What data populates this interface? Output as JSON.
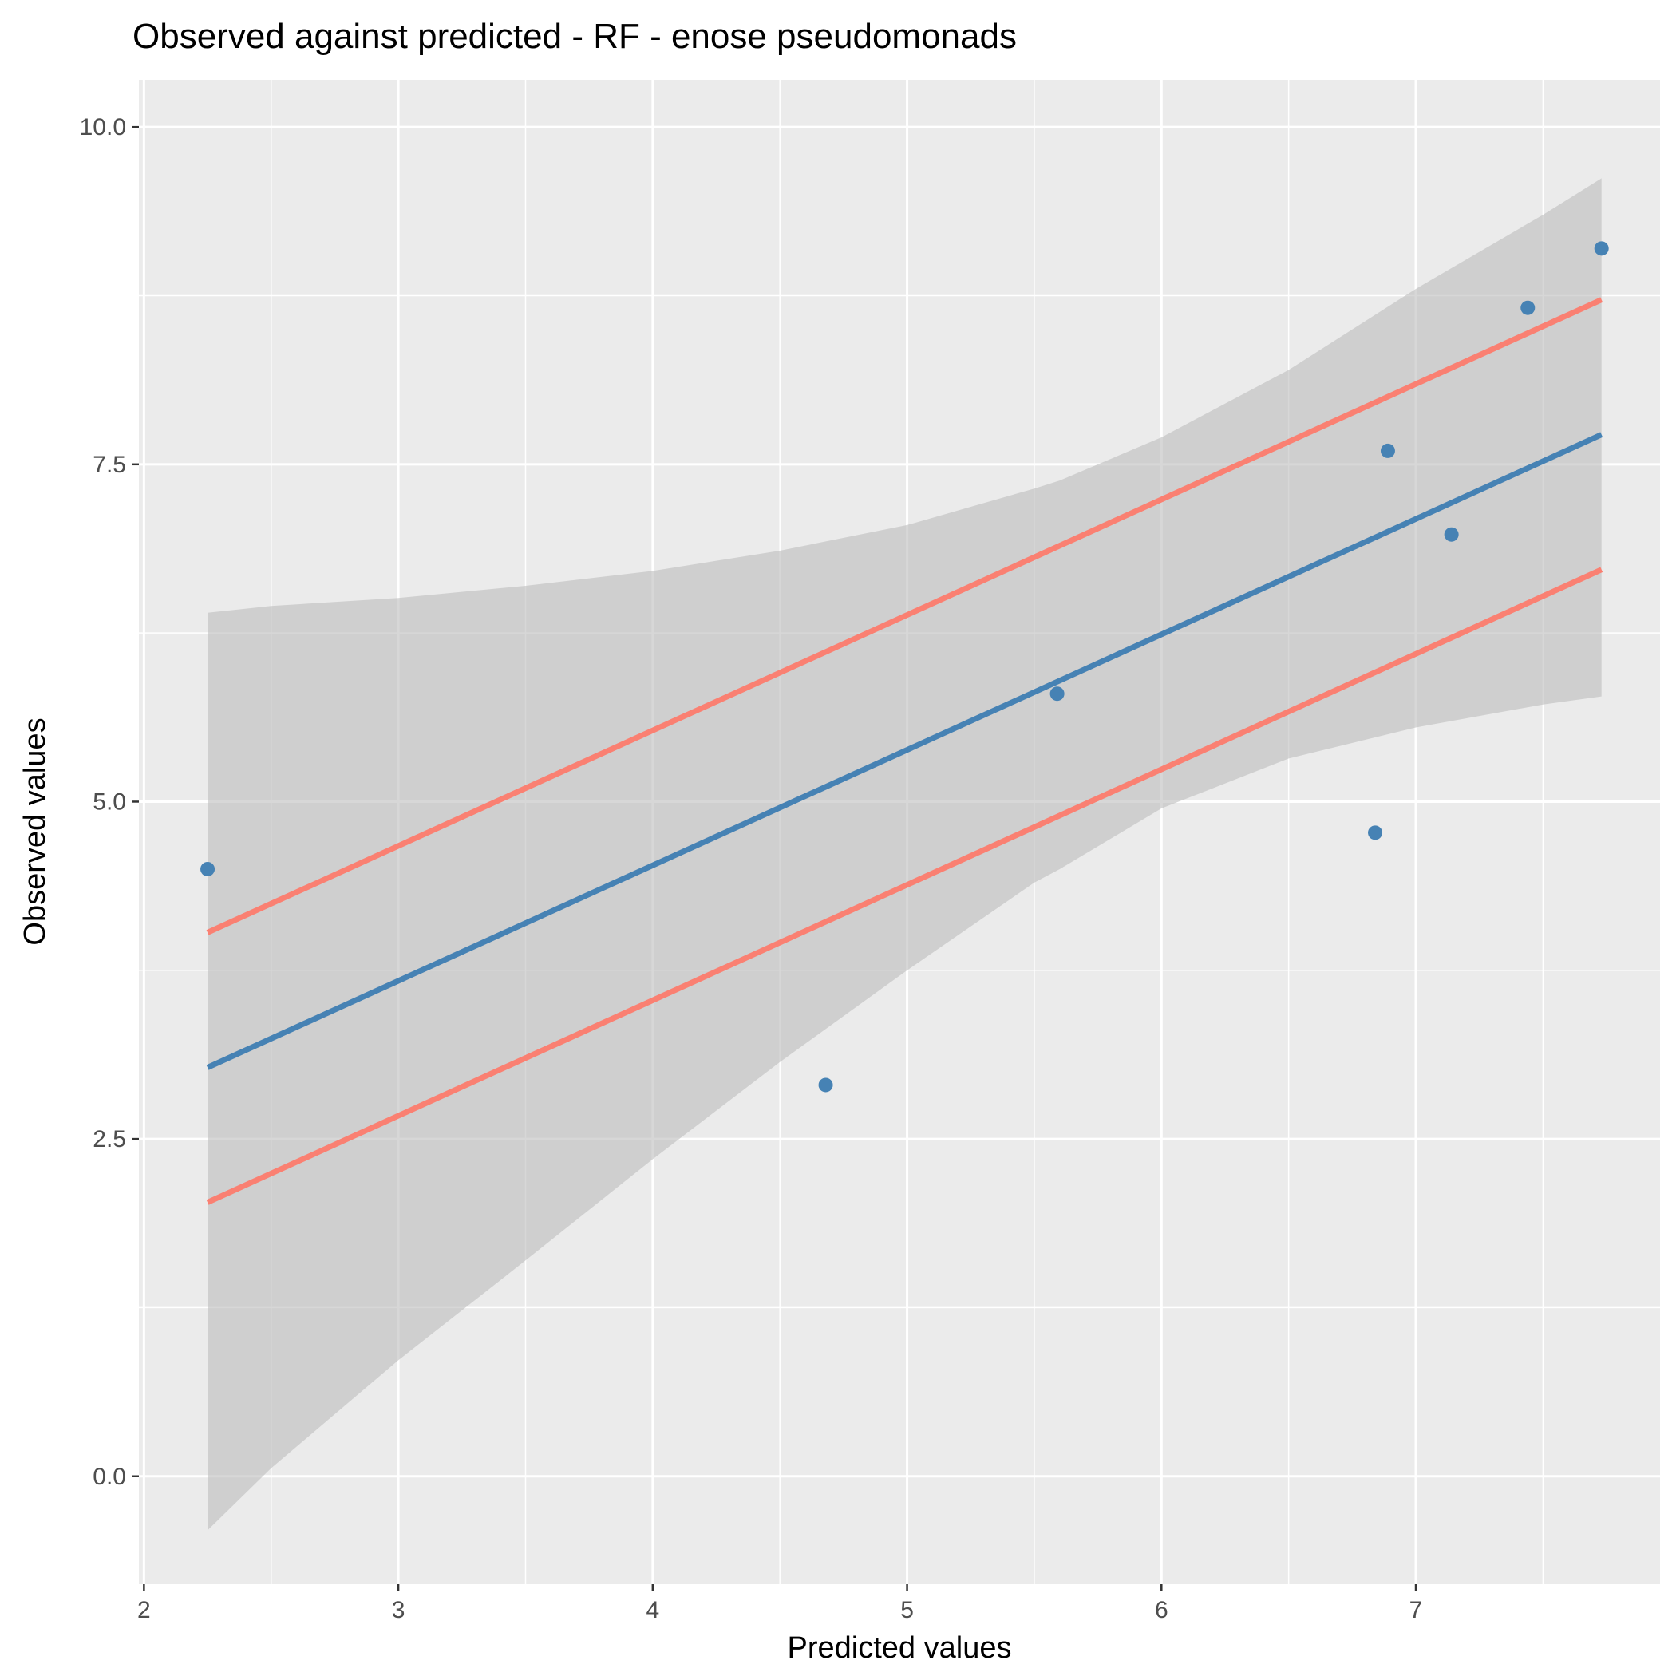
{
  "chart_data": {
    "type": "scatter",
    "title": "Observed against predicted - RF - enose pseudomonads",
    "xlabel": "Predicted values",
    "ylabel": "Observed values",
    "xlim": [
      1.98,
      7.96
    ],
    "ylim": [
      -0.8,
      10.35
    ],
    "x_ticks": [
      2,
      3,
      4,
      5,
      6,
      7
    ],
    "x_tick_labels": [
      "2",
      "3",
      "4",
      "5",
      "6",
      "7"
    ],
    "y_ticks": [
      0,
      2.5,
      5,
      7.5,
      10
    ],
    "y_tick_labels": [
      "0.0",
      "2.5",
      "5.0",
      "7.5",
      "10.0"
    ],
    "grid": true,
    "legend": "none",
    "colors": {
      "panel_background": "#ebebeb",
      "grid": "#ffffff",
      "points": "#4682b4",
      "regression_line": "#4682b4",
      "bound_lines": "#fa8072",
      "confidence_band": "#bdbdbd"
    },
    "points": [
      {
        "x": 2.25,
        "y": 4.5
      },
      {
        "x": 4.68,
        "y": 2.9
      },
      {
        "x": 5.59,
        "y": 5.8
      },
      {
        "x": 6.84,
        "y": 4.77
      },
      {
        "x": 6.89,
        "y": 7.6
      },
      {
        "x": 7.14,
        "y": 6.98
      },
      {
        "x": 7.44,
        "y": 8.66
      },
      {
        "x": 7.73,
        "y": 9.1
      }
    ],
    "regression_line": {
      "x": [
        2.25,
        7.73
      ],
      "y": [
        3.03,
        7.72
      ]
    },
    "bound_lines": [
      {
        "x": [
          2.25,
          7.73
        ],
        "y": [
          4.03,
          8.72
        ]
      },
      {
        "x": [
          2.25,
          7.73
        ],
        "y": [
          2.03,
          6.72
        ]
      }
    ],
    "confidence_band": {
      "x": [
        2.25,
        2.5,
        3.0,
        3.5,
        4.0,
        4.5,
        5.0,
        5.5,
        5.6,
        6.0,
        6.5,
        7.0,
        7.5,
        7.73
      ],
      "upper": [
        6.4,
        6.45,
        6.51,
        6.6,
        6.71,
        6.86,
        7.05,
        7.32,
        7.38,
        7.7,
        8.2,
        8.8,
        9.35,
        9.62
      ],
      "lower": [
        -0.4,
        0.06,
        0.86,
        1.6,
        2.35,
        3.07,
        3.75,
        4.4,
        4.5,
        4.95,
        5.32,
        5.55,
        5.72,
        5.78
      ]
    }
  }
}
